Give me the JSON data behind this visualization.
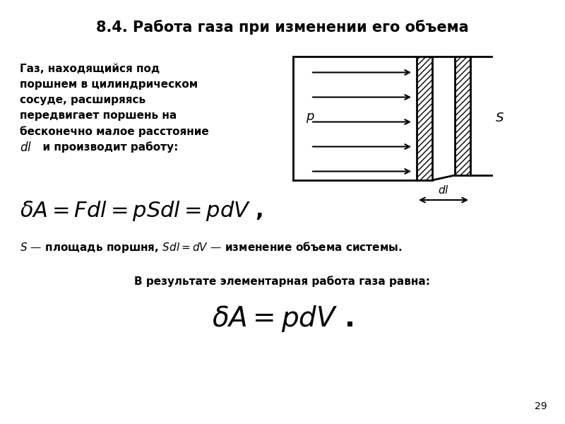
{
  "title": "8.4. Работа газа при изменении его объема",
  "title_fontsize": 15,
  "bg_color": "#ffffff",
  "text_color": "#000000",
  "page_number": "29",
  "para_line1": "Газ, находящийся под",
  "para_line2": "поршнем в цилиндрическом",
  "para_line3": "сосуде, расширяясь",
  "para_line4": "передвигает поршень на",
  "para_line5": "бесконечно малое расстояние",
  "para_line6": "и производит работу:",
  "explanation": "— площадь поршня,",
  "explanation2": "— изменение объема системы.",
  "subtitle2": "В результате элементарная работа газа равна:",
  "fig_fontsize": 11,
  "formula_fontsize": 22,
  "formula2_fontsize": 28
}
